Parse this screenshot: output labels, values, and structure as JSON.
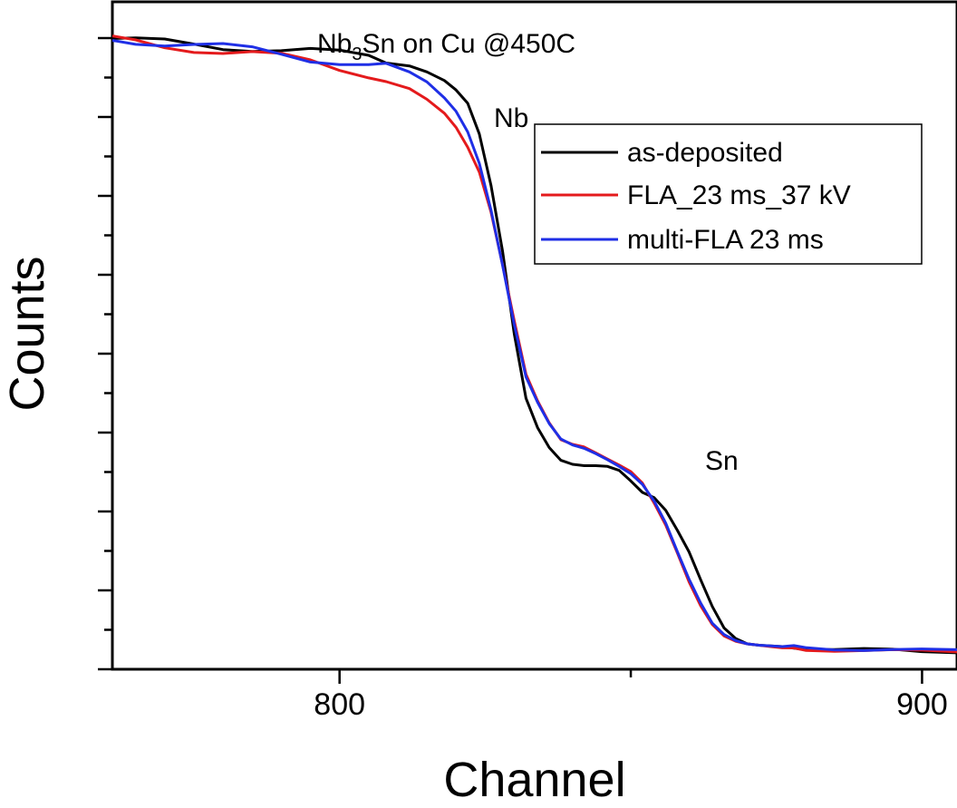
{
  "chart_data": {
    "type": "line",
    "title_main": "Nb",
    "title_sub": "3",
    "title_rest": "Sn on Cu @450C",
    "xlabel": "Channel",
    "ylabel": "Counts",
    "xlim": [
      761,
      906
    ],
    "ylim": [
      0,
      100
    ],
    "x_ticks": [
      800,
      900
    ],
    "x_minor_ticks": [
      850
    ],
    "y_ticks_count": 8,
    "grid": false,
    "legend_position": "top-right",
    "annotations": [
      {
        "text": "Nb",
        "x": 829,
        "y": 93
      },
      {
        "text": "Sn",
        "x": 864,
        "y": 33
      }
    ],
    "series": [
      {
        "name": "as-deposited",
        "color": "#000000",
        "x": [
          761,
          765,
          770,
          775,
          780,
          785,
          790,
          795,
          800,
          805,
          808,
          812,
          815,
          818,
          820,
          822,
          824,
          826,
          828,
          830,
          832,
          834,
          836,
          838,
          840,
          842,
          844,
          846,
          848,
          850,
          852,
          854,
          856,
          858,
          860,
          862,
          864,
          866,
          868,
          870,
          872,
          874,
          876,
          878,
          880,
          885,
          890,
          895,
          900,
          906
        ],
        "y": [
          94.5,
          94,
          93.8,
          93.6,
          93.4,
          93.2,
          92.8,
          92.5,
          92.1,
          91.8,
          91.3,
          90.4,
          89.5,
          88.2,
          86.8,
          84.8,
          80.2,
          72.5,
          62.6,
          50.2,
          40.6,
          36.2,
          33.2,
          31.3,
          30.7,
          30.5,
          30.5,
          30.4,
          29.8,
          28.2,
          26.5,
          25.7,
          23.8,
          20.8,
          17.6,
          13.4,
          9.4,
          6.2,
          4.6,
          3.8,
          3.6,
          3.5,
          3.4,
          3.3,
          3.2,
          3,
          2.9,
          2.8,
          2.7,
          2.7
        ]
      },
      {
        "name": "FLA_23 ms_37 kV",
        "color": "#e41a1c",
        "x": [
          761,
          765,
          770,
          775,
          780,
          785,
          790,
          795,
          800,
          805,
          808,
          812,
          815,
          818,
          820,
          822,
          824,
          826,
          828,
          830,
          832,
          834,
          836,
          838,
          840,
          842,
          844,
          846,
          848,
          850,
          852,
          854,
          856,
          858,
          860,
          862,
          864,
          866,
          868,
          870,
          872,
          874,
          876,
          878,
          880,
          885,
          890,
          895,
          900,
          906
        ],
        "y": [
          94.2,
          94,
          93.5,
          93.1,
          92.6,
          92.2,
          91.6,
          90.9,
          90,
          89.3,
          88.5,
          87,
          85.4,
          83.3,
          81.2,
          78.2,
          74.5,
          68.5,
          60.6,
          52.2,
          44.2,
          40.2,
          36.9,
          34.4,
          33.7,
          33.3,
          32.4,
          31.5,
          30.6,
          29.6,
          27.9,
          24.9,
          21.6,
          17.4,
          13.1,
          9.5,
          6.7,
          5,
          4.2,
          3.8,
          3.6,
          3.4,
          3.2,
          3.1,
          3,
          2.9,
          2.8,
          2.7,
          2.7,
          2.7
        ]
      },
      {
        "name": "multi-FLA 23 ms",
        "color": "#1f2fe6",
        "x": [
          761,
          765,
          770,
          775,
          780,
          785,
          790,
          795,
          800,
          805,
          808,
          812,
          815,
          818,
          820,
          822,
          824,
          826,
          828,
          830,
          832,
          834,
          836,
          838,
          840,
          842,
          844,
          846,
          848,
          850,
          852,
          854,
          856,
          858,
          860,
          862,
          864,
          866,
          868,
          870,
          872,
          874,
          876,
          878,
          880,
          885,
          890,
          895,
          900,
          906
        ],
        "y": [
          94.4,
          94.3,
          93.9,
          93.5,
          93.1,
          92.7,
          92.2,
          91.6,
          91.2,
          90.6,
          90.2,
          89.5,
          88,
          85.6,
          83.6,
          80.5,
          75.8,
          68.8,
          60.5,
          51.6,
          43.8,
          40,
          36.8,
          34.5,
          33.6,
          33.1,
          32.3,
          31.4,
          30.4,
          29.3,
          27.7,
          25.2,
          21.9,
          17.6,
          13.5,
          9.9,
          6.9,
          5.2,
          4.3,
          3.8,
          3.6,
          3.5,
          3.4,
          3.3,
          3.2,
          3.1,
          3,
          2.9,
          2.8,
          2.8
        ]
      }
    ]
  }
}
